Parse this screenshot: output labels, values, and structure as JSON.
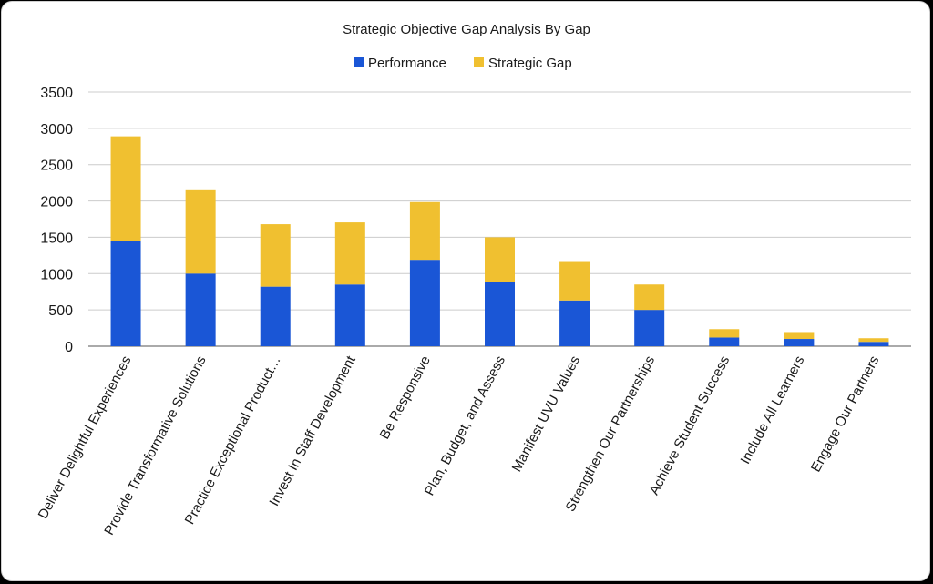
{
  "chart_data": {
    "type": "bar",
    "stacked": true,
    "title": "Strategic Objective Gap Analysis By Gap",
    "legend_position": "top",
    "grid": true,
    "ylim": [
      0,
      3500
    ],
    "yticks": [
      0,
      500,
      1000,
      1500,
      2000,
      2500,
      3000,
      3500
    ],
    "categories": [
      "Deliver Delightful Experiences",
      "Provide Transformative Solutions",
      "Practice Exceptional Product…",
      "Invest In Staff Development",
      "Be Responsive",
      "Plan, Budget, and Assess",
      "Manifest UVU Values",
      "Strengthen Our Partnerships",
      "Achieve Student Success",
      "Include All Learners",
      "Engage Our Partners"
    ],
    "series": [
      {
        "name": "Performance",
        "color": "#1a56d6",
        "values": [
          1450,
          1000,
          820,
          850,
          1190,
          890,
          630,
          500,
          120,
          100,
          60
        ]
      },
      {
        "name": "Strategic Gap",
        "color": "#f0c030",
        "values": [
          1440,
          1160,
          860,
          855,
          795,
          610,
          530,
          350,
          115,
          95,
          50
        ]
      }
    ]
  }
}
